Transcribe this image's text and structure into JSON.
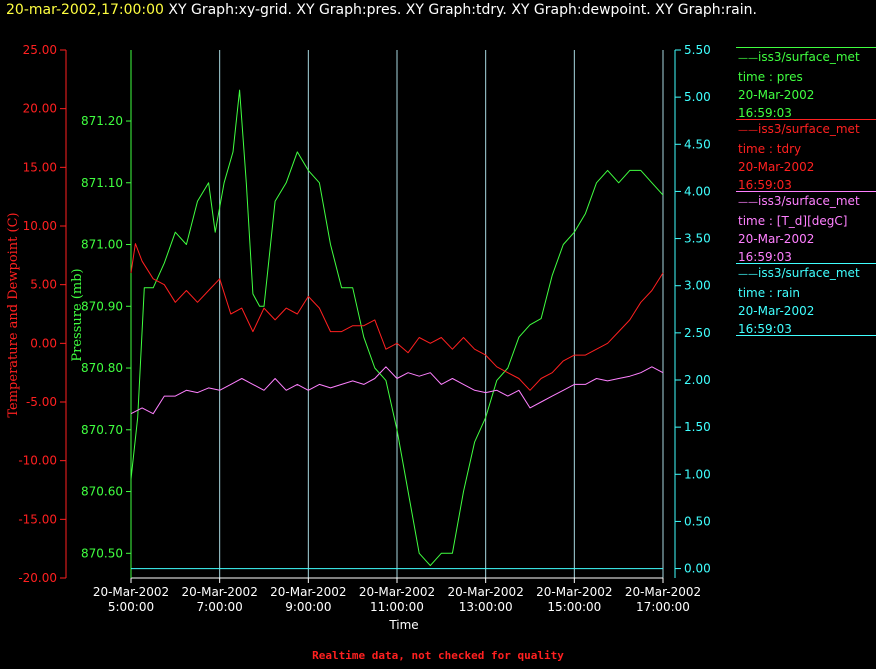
{
  "header": {
    "timestamp": "20-mar-2002,17:00:00",
    "graphs": "XY Graph:xy-grid.  XY Graph:pres.  XY Graph:tdry.  XY Graph:dewpoint.  XY Graph:rain."
  },
  "footer": {
    "note": "Realtime data, not checked for quality"
  },
  "legend": [
    {
      "source": "iss3/surface_met",
      "field": "time : pres",
      "date": "20-Mar-2002",
      "time": "16:59:03",
      "color": "#40ff40"
    },
    {
      "source": "iss3/surface_met",
      "field": "time : tdry",
      "date": "20-Mar-2002",
      "time": "16:59:03",
      "color": "#ff2020"
    },
    {
      "source": "iss3/surface_met",
      "field": "time : [T_d][degC]",
      "date": "20-Mar-2002",
      "time": "16:59:03",
      "color": "#ff80ff"
    },
    {
      "source": "iss3/surface_met",
      "field": "time : rain",
      "date": "20-Mar-2002",
      "time": "16:59:03",
      "color": "#40ffff"
    }
  ],
  "chart_data": {
    "type": "line",
    "xlabel": "Time",
    "x_ticks": [
      {
        "date": "20-Mar-2002",
        "time": "5:00:00"
      },
      {
        "date": "20-Mar-2002",
        "time": "7:00:00"
      },
      {
        "date": "20-Mar-2002",
        "time": "9:00:00"
      },
      {
        "date": "20-Mar-2002",
        "time": "11:00:00"
      },
      {
        "date": "20-Mar-2002",
        "time": "13:00:00"
      },
      {
        "date": "20-Mar-2002",
        "time": "15:00:00"
      },
      {
        "date": "20-Mar-2002",
        "time": "17:00:00"
      }
    ],
    "x_range_hours": [
      5,
      17
    ],
    "grid": "vertical",
    "axes": {
      "temperature": {
        "label": "Temperature and Dewpoint (C)",
        "range": [
          -20,
          25
        ],
        "color": "#ff2020",
        "ticks": [
          "25.00",
          "20.00",
          "15.00",
          "10.00",
          "5.00",
          "0.00",
          "-5.00",
          "-10.00",
          "-15.00",
          "-20.00"
        ]
      },
      "pressure": {
        "label": "Pressure (mb)",
        "range": [
          870.46,
          871.315
        ],
        "color": "#40ff40",
        "ticks": [
          "871.20",
          "871.10",
          "871.00",
          "870.90",
          "870.80",
          "870.70",
          "870.60",
          "870.50"
        ]
      },
      "rain": {
        "label": "",
        "range": [
          -0.1,
          5.5
        ],
        "color": "#40ffff",
        "ticks": [
          "5.50",
          "5.00",
          "4.50",
          "4.00",
          "3.50",
          "3.00",
          "2.50",
          "2.00",
          "1.50",
          "1.00",
          "0.50",
          "0.00"
        ]
      }
    },
    "series": [
      {
        "name": "time : pres",
        "axis": "pressure",
        "color": "#40ff40",
        "x": [
          5.0,
          5.15,
          5.3,
          5.5,
          5.75,
          6.0,
          6.25,
          6.5,
          6.75,
          6.9,
          7.1,
          7.3,
          7.45,
          7.6,
          7.75,
          7.9,
          8.0,
          8.25,
          8.5,
          8.75,
          9.0,
          9.25,
          9.5,
          9.75,
          10.0,
          10.25,
          10.5,
          10.75,
          11.0,
          11.25,
          11.5,
          11.75,
          12.0,
          12.25,
          12.5,
          12.75,
          13.0,
          13.25,
          13.5,
          13.75,
          14.0,
          14.25,
          14.5,
          14.75,
          15.0,
          15.25,
          15.5,
          15.75,
          16.0,
          16.25,
          16.5,
          16.75,
          17.0
        ],
        "y": [
          870.62,
          870.72,
          870.93,
          870.93,
          870.97,
          871.02,
          871.0,
          871.07,
          871.1,
          871.02,
          871.1,
          871.15,
          871.25,
          871.1,
          870.92,
          870.9,
          870.9,
          871.07,
          871.1,
          871.15,
          871.12,
          871.1,
          871.0,
          870.93,
          870.93,
          870.85,
          870.8,
          870.78,
          870.7,
          870.6,
          870.5,
          870.48,
          870.5,
          870.5,
          870.6,
          870.68,
          870.72,
          870.78,
          870.8,
          870.85,
          870.87,
          870.88,
          870.95,
          871.0,
          871.02,
          871.05,
          871.1,
          871.12,
          871.1,
          871.12,
          871.12,
          871.1,
          871.08
        ]
      },
      {
        "name": "time : tdry",
        "axis": "temperature",
        "color": "#ff2020",
        "x": [
          5.0,
          5.1,
          5.25,
          5.5,
          5.75,
          6.0,
          6.25,
          6.5,
          6.75,
          7.0,
          7.25,
          7.5,
          7.75,
          8.0,
          8.25,
          8.5,
          8.75,
          9.0,
          9.25,
          9.5,
          9.75,
          10.0,
          10.25,
          10.5,
          10.75,
          11.0,
          11.25,
          11.5,
          11.75,
          12.0,
          12.25,
          12.5,
          12.75,
          13.0,
          13.25,
          13.5,
          13.75,
          14.0,
          14.25,
          14.5,
          14.75,
          15.0,
          15.25,
          15.5,
          15.75,
          16.0,
          16.25,
          16.5,
          16.75,
          17.0
        ],
        "y": [
          6.0,
          8.5,
          7.0,
          5.5,
          5.0,
          3.5,
          4.5,
          3.5,
          4.5,
          5.5,
          2.5,
          3.0,
          1.0,
          3.0,
          2.0,
          3.0,
          2.5,
          4.0,
          3.0,
          1.0,
          1.0,
          1.5,
          1.5,
          2.0,
          -0.5,
          0.0,
          -0.8,
          0.5,
          0.0,
          0.5,
          -0.5,
          0.5,
          -0.5,
          -1.0,
          -2.0,
          -2.5,
          -3.0,
          -4.0,
          -3.0,
          -2.5,
          -1.5,
          -1.0,
          -1.0,
          -0.5,
          0.0,
          1.0,
          2.0,
          3.5,
          4.5,
          6.0
        ]
      },
      {
        "name": "time : [T_d][degC]",
        "axis": "temperature",
        "color": "#ff80ff",
        "x": [
          5.0,
          5.25,
          5.5,
          5.75,
          6.0,
          6.25,
          6.5,
          6.75,
          7.0,
          7.25,
          7.5,
          7.75,
          8.0,
          8.25,
          8.5,
          8.75,
          9.0,
          9.25,
          9.5,
          9.75,
          10.0,
          10.25,
          10.5,
          10.75,
          11.0,
          11.25,
          11.5,
          11.75,
          12.0,
          12.25,
          12.5,
          12.75,
          13.0,
          13.25,
          13.5,
          13.75,
          14.0,
          14.25,
          14.5,
          14.75,
          15.0,
          15.25,
          15.5,
          15.75,
          16.0,
          16.25,
          16.5,
          16.75,
          17.0
        ],
        "y": [
          -6.0,
          -5.5,
          -6.0,
          -4.5,
          -4.5,
          -4.0,
          -4.2,
          -3.8,
          -4.0,
          -3.5,
          -3.0,
          -3.5,
          -4.0,
          -3.0,
          -4.0,
          -3.5,
          -4.0,
          -3.5,
          -3.8,
          -3.5,
          -3.2,
          -3.5,
          -3.0,
          -2.0,
          -3.0,
          -2.5,
          -2.8,
          -2.5,
          -3.5,
          -3.0,
          -3.5,
          -4.0,
          -4.2,
          -4.0,
          -4.5,
          -4.0,
          -5.5,
          -5.0,
          -4.5,
          -4.0,
          -3.5,
          -3.5,
          -3.0,
          -3.2,
          -3.0,
          -2.8,
          -2.5,
          -2.0,
          -2.5
        ]
      },
      {
        "name": "time : rain",
        "axis": "rain",
        "color": "#40ffff",
        "x": [
          5.0,
          17.0
        ],
        "y": [
          0.0,
          0.0
        ]
      }
    ]
  }
}
